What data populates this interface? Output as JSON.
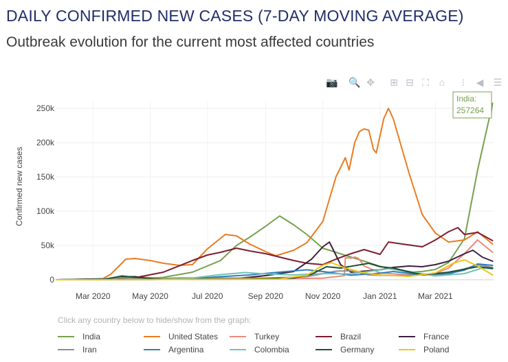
{
  "title": "DAILY CONFIRMED NEW CASES (7-DAY MOVING AVERAGE)",
  "subtitle": "Outbreak evolution for the current most affected countries",
  "toolbar": [
    {
      "name": "camera-icon",
      "glyph": "📷"
    },
    {
      "name": "zoom-icon",
      "glyph": "🔍"
    },
    {
      "name": "pan-icon",
      "glyph": "✥"
    },
    {
      "name": "zoom-in-icon",
      "glyph": "⊞"
    },
    {
      "name": "zoom-out-icon",
      "glyph": "⊟"
    },
    {
      "name": "autoscale-icon",
      "glyph": "⛶"
    },
    {
      "name": "home-icon",
      "glyph": "⌂"
    },
    {
      "name": "spike-lines-icon",
      "glyph": "⁝"
    },
    {
      "name": "hover-closest-icon",
      "glyph": "◀"
    },
    {
      "name": "hover-compare-icon",
      "glyph": "☰"
    }
  ],
  "legend_hint": "Click any country below to hide/show from the graph:",
  "chart_data": {
    "type": "line",
    "ylabel": "Confirmed new cases",
    "yticks": [
      "0",
      "50k",
      "100k",
      "150k",
      "200k",
      "250k"
    ],
    "ylim": [
      0,
      260000
    ],
    "xticks": [
      "Mar 2020",
      "May 2020",
      "Jul 2020",
      "Sep 2020",
      "Nov 2020",
      "Jan 2021",
      "Mar 2021"
    ],
    "xtick_dates": [
      "2020-03-01",
      "2020-05-01",
      "2020-07-01",
      "2020-09-01",
      "2020-11-01",
      "2021-01-01",
      "2021-03-01"
    ],
    "xlim": [
      "2020-01-22",
      "2021-05-02"
    ],
    "grid": true,
    "annotation": {
      "series": "India",
      "line1": "India:",
      "line2": "257264",
      "date": "2021-05-01",
      "value": 257264
    },
    "series": [
      {
        "name": "India",
        "color": "#77a04d",
        "points": [
          [
            "2020-01-22",
            0
          ],
          [
            "2020-03-15",
            100
          ],
          [
            "2020-04-15",
            1000
          ],
          [
            "2020-05-15",
            3500
          ],
          [
            "2020-06-15",
            11000
          ],
          [
            "2020-07-15",
            28000
          ],
          [
            "2020-08-01",
            50000
          ],
          [
            "2020-08-15",
            62000
          ],
          [
            "2020-09-01",
            78000
          ],
          [
            "2020-09-16",
            93000
          ],
          [
            "2020-10-01",
            80000
          ],
          [
            "2020-10-15",
            66000
          ],
          [
            "2020-11-01",
            46000
          ],
          [
            "2020-11-15",
            40000
          ],
          [
            "2020-12-01",
            33000
          ],
          [
            "2020-12-15",
            27000
          ],
          [
            "2021-01-01",
            19500
          ],
          [
            "2021-01-15",
            15500
          ],
          [
            "2021-02-01",
            11000
          ],
          [
            "2021-02-15",
            12000
          ],
          [
            "2021-03-01",
            15000
          ],
          [
            "2021-03-15",
            25000
          ],
          [
            "2021-04-01",
            60000
          ],
          [
            "2021-04-15",
            160000
          ],
          [
            "2021-05-01",
            257264
          ]
        ]
      },
      {
        "name": "United States",
        "color": "#ea7b20",
        "points": [
          [
            "2020-01-22",
            0
          ],
          [
            "2020-03-10",
            400
          ],
          [
            "2020-03-20",
            8000
          ],
          [
            "2020-04-05",
            30000
          ],
          [
            "2020-04-15",
            31000
          ],
          [
            "2020-05-01",
            28000
          ],
          [
            "2020-05-15",
            24000
          ],
          [
            "2020-06-01",
            21000
          ],
          [
            "2020-06-15",
            22000
          ],
          [
            "2020-07-01",
            45000
          ],
          [
            "2020-07-20",
            66000
          ],
          [
            "2020-08-01",
            64000
          ],
          [
            "2020-08-15",
            52000
          ],
          [
            "2020-09-01",
            41000
          ],
          [
            "2020-09-12",
            35000
          ],
          [
            "2020-10-01",
            43000
          ],
          [
            "2020-10-15",
            54000
          ],
          [
            "2020-11-01",
            85000
          ],
          [
            "2020-11-15",
            150000
          ],
          [
            "2020-11-25",
            178000
          ],
          [
            "2020-11-29",
            160000
          ],
          [
            "2020-12-05",
            200000
          ],
          [
            "2020-12-10",
            216000
          ],
          [
            "2020-12-15",
            220000
          ],
          [
            "2020-12-20",
            218000
          ],
          [
            "2020-12-25",
            190000
          ],
          [
            "2020-12-28",
            185000
          ],
          [
            "2021-01-05",
            235000
          ],
          [
            "2021-01-10",
            250000
          ],
          [
            "2021-01-15",
            235000
          ],
          [
            "2021-02-01",
            155000
          ],
          [
            "2021-02-15",
            95000
          ],
          [
            "2021-03-01",
            68000
          ],
          [
            "2021-03-15",
            55000
          ],
          [
            "2021-04-01",
            58000
          ],
          [
            "2021-04-15",
            70000
          ],
          [
            "2021-05-01",
            52000
          ]
        ]
      },
      {
        "name": "Turkey",
        "color": "#e98b7a",
        "points": [
          [
            "2020-01-22",
            0
          ],
          [
            "2020-03-15",
            100
          ],
          [
            "2020-04-15",
            4200
          ],
          [
            "2020-06-01",
            900
          ],
          [
            "2020-08-01",
            1100
          ],
          [
            "2020-11-01",
            2200
          ],
          [
            "2020-11-24",
            6000
          ],
          [
            "2020-11-25",
            32000
          ],
          [
            "2020-12-01",
            31500
          ],
          [
            "2020-12-05",
            33000
          ],
          [
            "2020-12-09",
            31000
          ],
          [
            "2020-12-15",
            20000
          ],
          [
            "2021-01-01",
            10000
          ],
          [
            "2021-02-01",
            7000
          ],
          [
            "2021-03-01",
            9000
          ],
          [
            "2021-03-15",
            17000
          ],
          [
            "2021-04-01",
            38000
          ],
          [
            "2021-04-15",
            58000
          ],
          [
            "2021-05-01",
            40000
          ]
        ]
      },
      {
        "name": "Brazil",
        "color": "#7b1d2e",
        "points": [
          [
            "2020-01-22",
            0
          ],
          [
            "2020-03-20",
            300
          ],
          [
            "2020-04-15",
            3000
          ],
          [
            "2020-05-15",
            11000
          ],
          [
            "2020-06-15",
            28000
          ],
          [
            "2020-07-01",
            36000
          ],
          [
            "2020-07-15",
            40000
          ],
          [
            "2020-08-01",
            46000
          ],
          [
            "2020-08-15",
            42000
          ],
          [
            "2020-09-01",
            38000
          ],
          [
            "2020-10-01",
            28000
          ],
          [
            "2020-10-15",
            24000
          ],
          [
            "2020-11-01",
            22000
          ],
          [
            "2020-11-15",
            30000
          ],
          [
            "2020-12-01",
            38000
          ],
          [
            "2020-12-15",
            44000
          ],
          [
            "2021-01-01",
            37000
          ],
          [
            "2021-01-10",
            55000
          ],
          [
            "2021-01-25",
            52000
          ],
          [
            "2021-02-15",
            48000
          ],
          [
            "2021-03-01",
            58000
          ],
          [
            "2021-03-15",
            70000
          ],
          [
            "2021-03-25",
            76000
          ],
          [
            "2021-04-01",
            66000
          ],
          [
            "2021-04-15",
            69000
          ],
          [
            "2021-05-01",
            57000
          ]
        ]
      },
      {
        "name": "France",
        "color": "#3b1f3c",
        "points": [
          [
            "2020-01-22",
            0
          ],
          [
            "2020-03-15",
            1500
          ],
          [
            "2020-04-01",
            4200
          ],
          [
            "2020-04-15",
            4500
          ],
          [
            "2020-05-01",
            1500
          ],
          [
            "2020-06-15",
            500
          ],
          [
            "2020-08-01",
            1800
          ],
          [
            "2020-09-01",
            6000
          ],
          [
            "2020-10-01",
            12000
          ],
          [
            "2020-10-20",
            30000
          ],
          [
            "2020-11-01",
            48000
          ],
          [
            "2020-11-08",
            55000
          ],
          [
            "2020-11-20",
            22000
          ],
          [
            "2020-12-01",
            11000
          ],
          [
            "2020-12-15",
            12500
          ],
          [
            "2021-01-01",
            14500
          ],
          [
            "2021-01-15",
            18000
          ],
          [
            "2021-02-01",
            20000
          ],
          [
            "2021-02-15",
            19000
          ],
          [
            "2021-03-01",
            22000
          ],
          [
            "2021-03-15",
            27000
          ],
          [
            "2021-04-01",
            38000
          ],
          [
            "2021-04-10",
            43000
          ],
          [
            "2021-04-20",
            33000
          ],
          [
            "2021-05-01",
            27000
          ]
        ]
      },
      {
        "name": "Iran",
        "color": "#8e8e8e",
        "points": [
          [
            "2020-01-22",
            0
          ],
          [
            "2020-03-01",
            500
          ],
          [
            "2020-03-30",
            3000
          ],
          [
            "2020-05-01",
            1200
          ],
          [
            "2020-06-01",
            2800
          ],
          [
            "2020-07-15",
            2500
          ],
          [
            "2020-09-01",
            2200
          ],
          [
            "2020-10-15",
            4500
          ],
          [
            "2020-11-15",
            12500
          ],
          [
            "2020-12-01",
            13000
          ],
          [
            "2020-12-20",
            7000
          ],
          [
            "2021-01-15",
            6000
          ],
          [
            "2021-02-15",
            7500
          ],
          [
            "2021-03-15",
            8000
          ],
          [
            "2021-04-15",
            22000
          ],
          [
            "2021-05-01",
            18000
          ]
        ]
      },
      {
        "name": "Argentina",
        "color": "#2f7ec2",
        "points": [
          [
            "2020-01-22",
            0
          ],
          [
            "2020-05-01",
            200
          ],
          [
            "2020-06-15",
            1500
          ],
          [
            "2020-07-15",
            4500
          ],
          [
            "2020-08-15",
            7000
          ],
          [
            "2020-09-15",
            11000
          ],
          [
            "2020-10-15",
            14500
          ],
          [
            "2020-11-01",
            12000
          ],
          [
            "2020-12-01",
            6500
          ],
          [
            "2021-01-01",
            9500
          ],
          [
            "2021-01-15",
            12000
          ],
          [
            "2021-02-15",
            7000
          ],
          [
            "2021-03-15",
            9000
          ],
          [
            "2021-04-01",
            14000
          ],
          [
            "2021-04-15",
            23000
          ],
          [
            "2021-05-01",
            21000
          ]
        ]
      },
      {
        "name": "Colombia",
        "color": "#72c2b4",
        "points": [
          [
            "2020-01-22",
            0
          ],
          [
            "2020-05-01",
            500
          ],
          [
            "2020-06-15",
            2500
          ],
          [
            "2020-07-15",
            7500
          ],
          [
            "2020-08-10",
            10500
          ],
          [
            "2020-09-01",
            8500
          ],
          [
            "2020-10-01",
            7000
          ],
          [
            "2020-11-01",
            9000
          ],
          [
            "2020-12-01",
            8500
          ],
          [
            "2021-01-10",
            16000
          ],
          [
            "2021-02-01",
            12000
          ],
          [
            "2021-03-01",
            5500
          ],
          [
            "2021-04-01",
            9000
          ],
          [
            "2021-04-20",
            17000
          ],
          [
            "2021-05-01",
            16000
          ]
        ]
      },
      {
        "name": "Germany",
        "color": "#1d4f35",
        "points": [
          [
            "2020-01-22",
            0
          ],
          [
            "2020-03-15",
            1000
          ],
          [
            "2020-04-01",
            5500
          ],
          [
            "2020-04-15",
            3500
          ],
          [
            "2020-05-15",
            600
          ],
          [
            "2020-08-01",
            900
          ],
          [
            "2020-10-01",
            2500
          ],
          [
            "2020-10-20",
            8000
          ],
          [
            "2020-11-05",
            19000
          ],
          [
            "2020-11-20",
            17000
          ],
          [
            "2020-12-20",
            24000
          ],
          [
            "2021-01-01",
            19000
          ],
          [
            "2021-01-15",
            17000
          ],
          [
            "2021-02-15",
            7000
          ],
          [
            "2021-03-15",
            11000
          ],
          [
            "2021-04-15",
            19000
          ],
          [
            "2021-05-01",
            16500
          ]
        ]
      },
      {
        "name": "Poland",
        "color": "#f0c419",
        "points": [
          [
            "2020-01-22",
            0
          ],
          [
            "2020-05-01",
            350
          ],
          [
            "2020-08-01",
            700
          ],
          [
            "2020-09-15",
            1000
          ],
          [
            "2020-10-15",
            6500
          ],
          [
            "2020-11-01",
            21000
          ],
          [
            "2020-11-10",
            25000
          ],
          [
            "2020-11-25",
            17000
          ],
          [
            "2020-12-15",
            10000
          ],
          [
            "2021-01-01",
            7000
          ],
          [
            "2021-02-01",
            5000
          ],
          [
            "2021-03-01",
            10000
          ],
          [
            "2021-03-20",
            24000
          ],
          [
            "2021-04-01",
            29000
          ],
          [
            "2021-04-15",
            20000
          ],
          [
            "2021-05-01",
            7000
          ]
        ]
      }
    ]
  }
}
